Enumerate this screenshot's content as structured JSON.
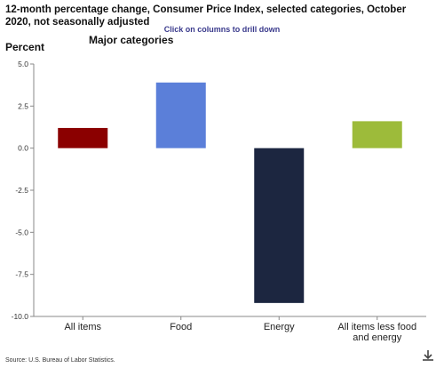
{
  "header": {
    "title": "12-month percentage change, Consumer Price Index, selected categories, October 2020, not seasonally adjusted",
    "drill_hint": "Click on columns to drill down",
    "subtitle": "Major categories",
    "source": "Source: U.S. Bureau of Labor Statistics."
  },
  "chart_data": {
    "type": "bar",
    "title": "12-month percentage change, Consumer Price Index, selected categories, October 2020, not seasonally adjusted",
    "subtitle": "Major categories",
    "ylabel": "Percent",
    "xlabel": "",
    "ylim": [
      -10.0,
      5.0
    ],
    "yticks": [
      "5.0",
      "2.5",
      "0.0",
      "-2.5",
      "-5.0",
      "-7.5",
      "-10.0"
    ],
    "categories": [
      "All items",
      "Food",
      "Energy",
      "All items less food and energy"
    ],
    "category_lines": [
      [
        "All items"
      ],
      [
        "Food"
      ],
      [
        "Energy"
      ],
      [
        "All items less food",
        "and energy"
      ]
    ],
    "values": [
      1.2,
      3.9,
      -9.2,
      1.6
    ],
    "colors": [
      "#8b0000",
      "#5b7fd9",
      "#1c2640",
      "#9dbb3a"
    ],
    "grid": false,
    "legend": "none"
  },
  "icons": {
    "download": "download-icon"
  }
}
